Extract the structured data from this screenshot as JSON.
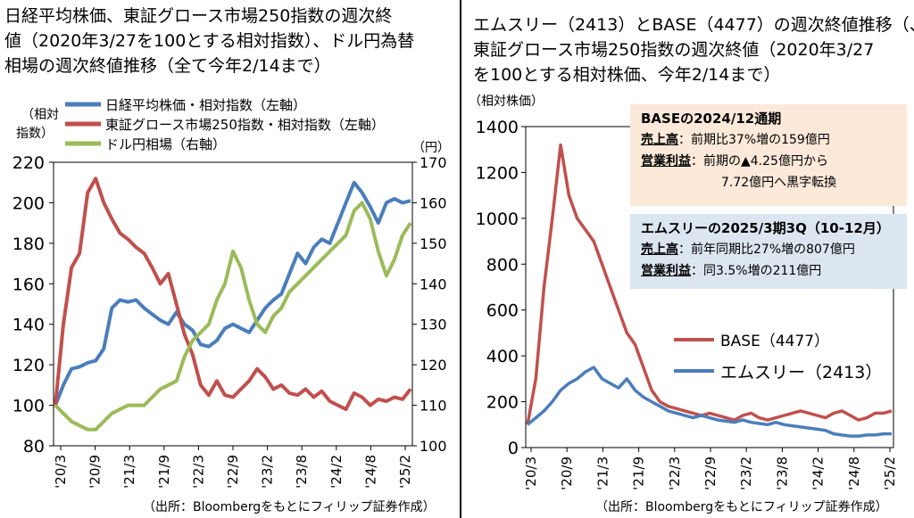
{
  "left": {
    "title_lines": [
      "日経平均株価、東証グロース市場250指数の週次終",
      "値（2020年3/27を100とする相対指数）、ドル円為替",
      "相場の週次終値推移（全て今年2/14まで）"
    ],
    "left_axis_label": [
      "（相対",
      "指数）"
    ],
    "right_axis_label": "（円）",
    "source": "（出所：Bloombergをもとにフィリップ証券作成）",
    "colors": {
      "nikkei": "#4a7ebb",
      "growth": "#c0504d",
      "usdjpy": "#9bbb59"
    },
    "chart_data": {
      "type": "line",
      "x_ticks": [
        "'20/3",
        "'20/9",
        "'21/3",
        "'21/9",
        "'22/3",
        "'22/9",
        "'23/2",
        "'23/8",
        "'24/2",
        "'24/8",
        "'25/2"
      ],
      "y_left_ticks": [
        80,
        100,
        120,
        140,
        160,
        180,
        200,
        220
      ],
      "y_left_range": [
        80,
        220
      ],
      "y_right_ticks": [
        100,
        110,
        120,
        130,
        140,
        150,
        160,
        170
      ],
      "y_right_range": [
        100,
        170
      ],
      "series": [
        {
          "name": "日経平均株価・相対指数（左軸）",
          "axis": "left",
          "values": [
            100,
            110,
            118,
            119,
            121,
            122,
            128,
            148,
            152,
            151,
            152,
            148,
            145,
            142,
            140,
            146,
            140,
            137,
            130,
            129,
            132,
            138,
            140,
            138,
            136,
            142,
            148,
            152,
            155,
            165,
            175,
            170,
            178,
            182,
            180,
            190,
            200,
            210,
            205,
            198,
            190,
            200,
            202,
            200,
            201
          ]
        },
        {
          "name": "東証グロース市場250指数・相対指数（左軸）",
          "axis": "left",
          "values": [
            100,
            140,
            168,
            175,
            205,
            212,
            200,
            192,
            185,
            182,
            178,
            175,
            168,
            160,
            165,
            150,
            135,
            125,
            110,
            105,
            112,
            105,
            104,
            108,
            112,
            118,
            114,
            108,
            110,
            106,
            105,
            108,
            104,
            107,
            102,
            100,
            98,
            106,
            104,
            100,
            103,
            102,
            104,
            103,
            108
          ]
        },
        {
          "name": "ドル円相場（右軸）",
          "axis": "right",
          "values": [
            110,
            108,
            106,
            105,
            104,
            104,
            106,
            108,
            109,
            110,
            110,
            110,
            112,
            114,
            115,
            116,
            122,
            126,
            128,
            130,
            136,
            140,
            148,
            144,
            136,
            130,
            128,
            132,
            134,
            138,
            140,
            142,
            144,
            146,
            148,
            150,
            152,
            158,
            160,
            156,
            148,
            142,
            146,
            152,
            155
          ]
        }
      ]
    }
  },
  "right": {
    "title_lines": [
      "エムスリー（2413）とBASE（4477）の週次終値推移（、",
      "東証グロース市場250指数の週次終値（2020年3/27",
      "を100とする相対株価、今年2/14まで）"
    ],
    "y_axis_label": "（相対株価）",
    "source": "（出所：Bloombergをもとにフィリップ証券作成）",
    "colors": {
      "base": "#c0504d",
      "m3": "#4a7ebb",
      "box1": "#fde9d9",
      "box2": "#dce6f1"
    },
    "box1": {
      "header": "BASEの2024/12通期",
      "l1_key": "売上高",
      "l1_val": "：前期比37%増の159億円",
      "l2_key": "営業利益",
      "l2_val": "：前期の▲4.25億円から",
      "l3": "7.72億円へ黒字転換"
    },
    "box2": {
      "header": "エムスリーの2025/3期3Q（10-12月）",
      "l1_key": "売上高",
      "l1_val": "：前年同期比27%増の807億円",
      "l2_key": "営業利益",
      "l2_val": "：同3.5%増の211億円"
    },
    "chart_data": {
      "type": "line",
      "x_ticks": [
        "'20/3",
        "'20/9",
        "'21/3",
        "'21/9",
        "'22/3",
        "'22/9",
        "'23/2",
        "'23/8",
        "'24/2",
        "'24/8",
        "'25/2"
      ],
      "y_ticks": [
        0,
        200,
        400,
        600,
        800,
        1000,
        1200,
        1400
      ],
      "y_range": [
        0,
        1400
      ],
      "series": [
        {
          "name": "BASE（4477）",
          "values": [
            100,
            300,
            700,
            1000,
            1320,
            1100,
            1000,
            950,
            900,
            800,
            700,
            600,
            500,
            450,
            350,
            250,
            200,
            180,
            170,
            160,
            150,
            140,
            150,
            140,
            130,
            120,
            140,
            150,
            130,
            120,
            130,
            140,
            150,
            160,
            150,
            140,
            130,
            150,
            160,
            140,
            120,
            130,
            150,
            150,
            160
          ]
        },
        {
          "name": "エムスリー（2413）",
          "values": [
            100,
            130,
            160,
            200,
            250,
            280,
            300,
            330,
            350,
            300,
            280,
            260,
            300,
            250,
            220,
            200,
            180,
            160,
            150,
            140,
            130,
            140,
            130,
            120,
            115,
            110,
            120,
            110,
            105,
            100,
            110,
            100,
            95,
            90,
            85,
            80,
            75,
            60,
            55,
            50,
            50,
            55,
            55,
            60,
            60
          ]
        }
      ]
    }
  }
}
